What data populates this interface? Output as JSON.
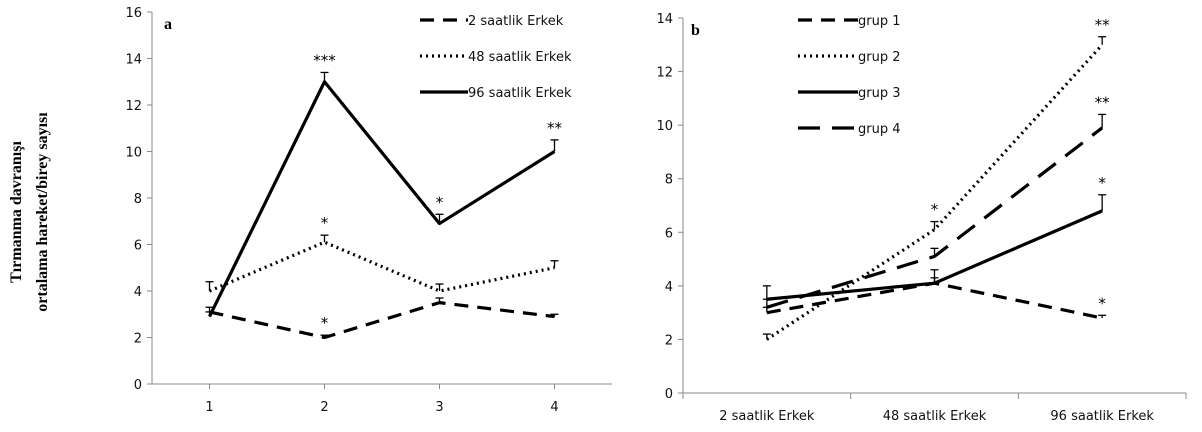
{
  "ylabel_lines": [
    "Tırmanma davranışı",
    "ortalama hareket/birey  sayısı"
  ],
  "chart_data": [
    {
      "panel": "a",
      "type": "line",
      "categories": [
        "1",
        "2",
        "3",
        "4"
      ],
      "ylim": [
        0,
        16
      ],
      "yticks": [
        0,
        2,
        4,
        6,
        8,
        10,
        12,
        14,
        16
      ],
      "grid": false,
      "legend": "top-right",
      "series": [
        {
          "name": "2 saatlik Erkek",
          "style": "dashed",
          "values": [
            3.1,
            2.0,
            3.5,
            2.9
          ],
          "errors": [
            0.2,
            0.1,
            0.2,
            0.1
          ],
          "significance": [
            "",
            "*",
            "",
            ""
          ]
        },
        {
          "name": "48 saatlik Erkek",
          "style": "dotted",
          "values": [
            4.0,
            6.1,
            4.0,
            5.0
          ],
          "errors": [
            0.4,
            0.3,
            0.3,
            0.3
          ],
          "significance": [
            "",
            "*",
            "",
            ""
          ]
        },
        {
          "name": "96 saatlik Erkek",
          "style": "solid",
          "values": [
            2.9,
            13.0,
            6.9,
            10.0
          ],
          "errors": [
            0.2,
            0.4,
            0.4,
            0.5
          ],
          "significance": [
            "",
            "***",
            "*",
            "**"
          ]
        }
      ]
    },
    {
      "panel": "b",
      "type": "line",
      "categories": [
        "2 saatlik Erkek",
        "48 saatlik Erkek",
        "96 saatlik Erkek"
      ],
      "ylim": [
        0,
        14
      ],
      "yticks": [
        0,
        2,
        4,
        6,
        8,
        10,
        12,
        14
      ],
      "grid": false,
      "legend": "top-left",
      "series": [
        {
          "name": "grup 1",
          "style": "dashed",
          "values": [
            3.0,
            4.1,
            2.8
          ],
          "errors": [
            0.2,
            0.2,
            0.1
          ],
          "significance": [
            "",
            "",
            "*"
          ]
        },
        {
          "name": "grup 2",
          "style": "dotted",
          "values": [
            2.0,
            6.1,
            13.0
          ],
          "errors": [
            0.2,
            0.3,
            0.3
          ],
          "significance": [
            "",
            "*",
            "**"
          ]
        },
        {
          "name": "grup 3",
          "style": "solid",
          "values": [
            3.5,
            4.1,
            6.8
          ],
          "errors": [
            0.5,
            0.5,
            0.6
          ],
          "significance": [
            "",
            "",
            "*"
          ]
        },
        {
          "name": "grup 4",
          "style": "longdash",
          "values": [
            3.2,
            5.1,
            9.9
          ],
          "errors": [
            0.3,
            0.3,
            0.5
          ],
          "significance": [
            "",
            "",
            "**"
          ]
        }
      ]
    }
  ]
}
